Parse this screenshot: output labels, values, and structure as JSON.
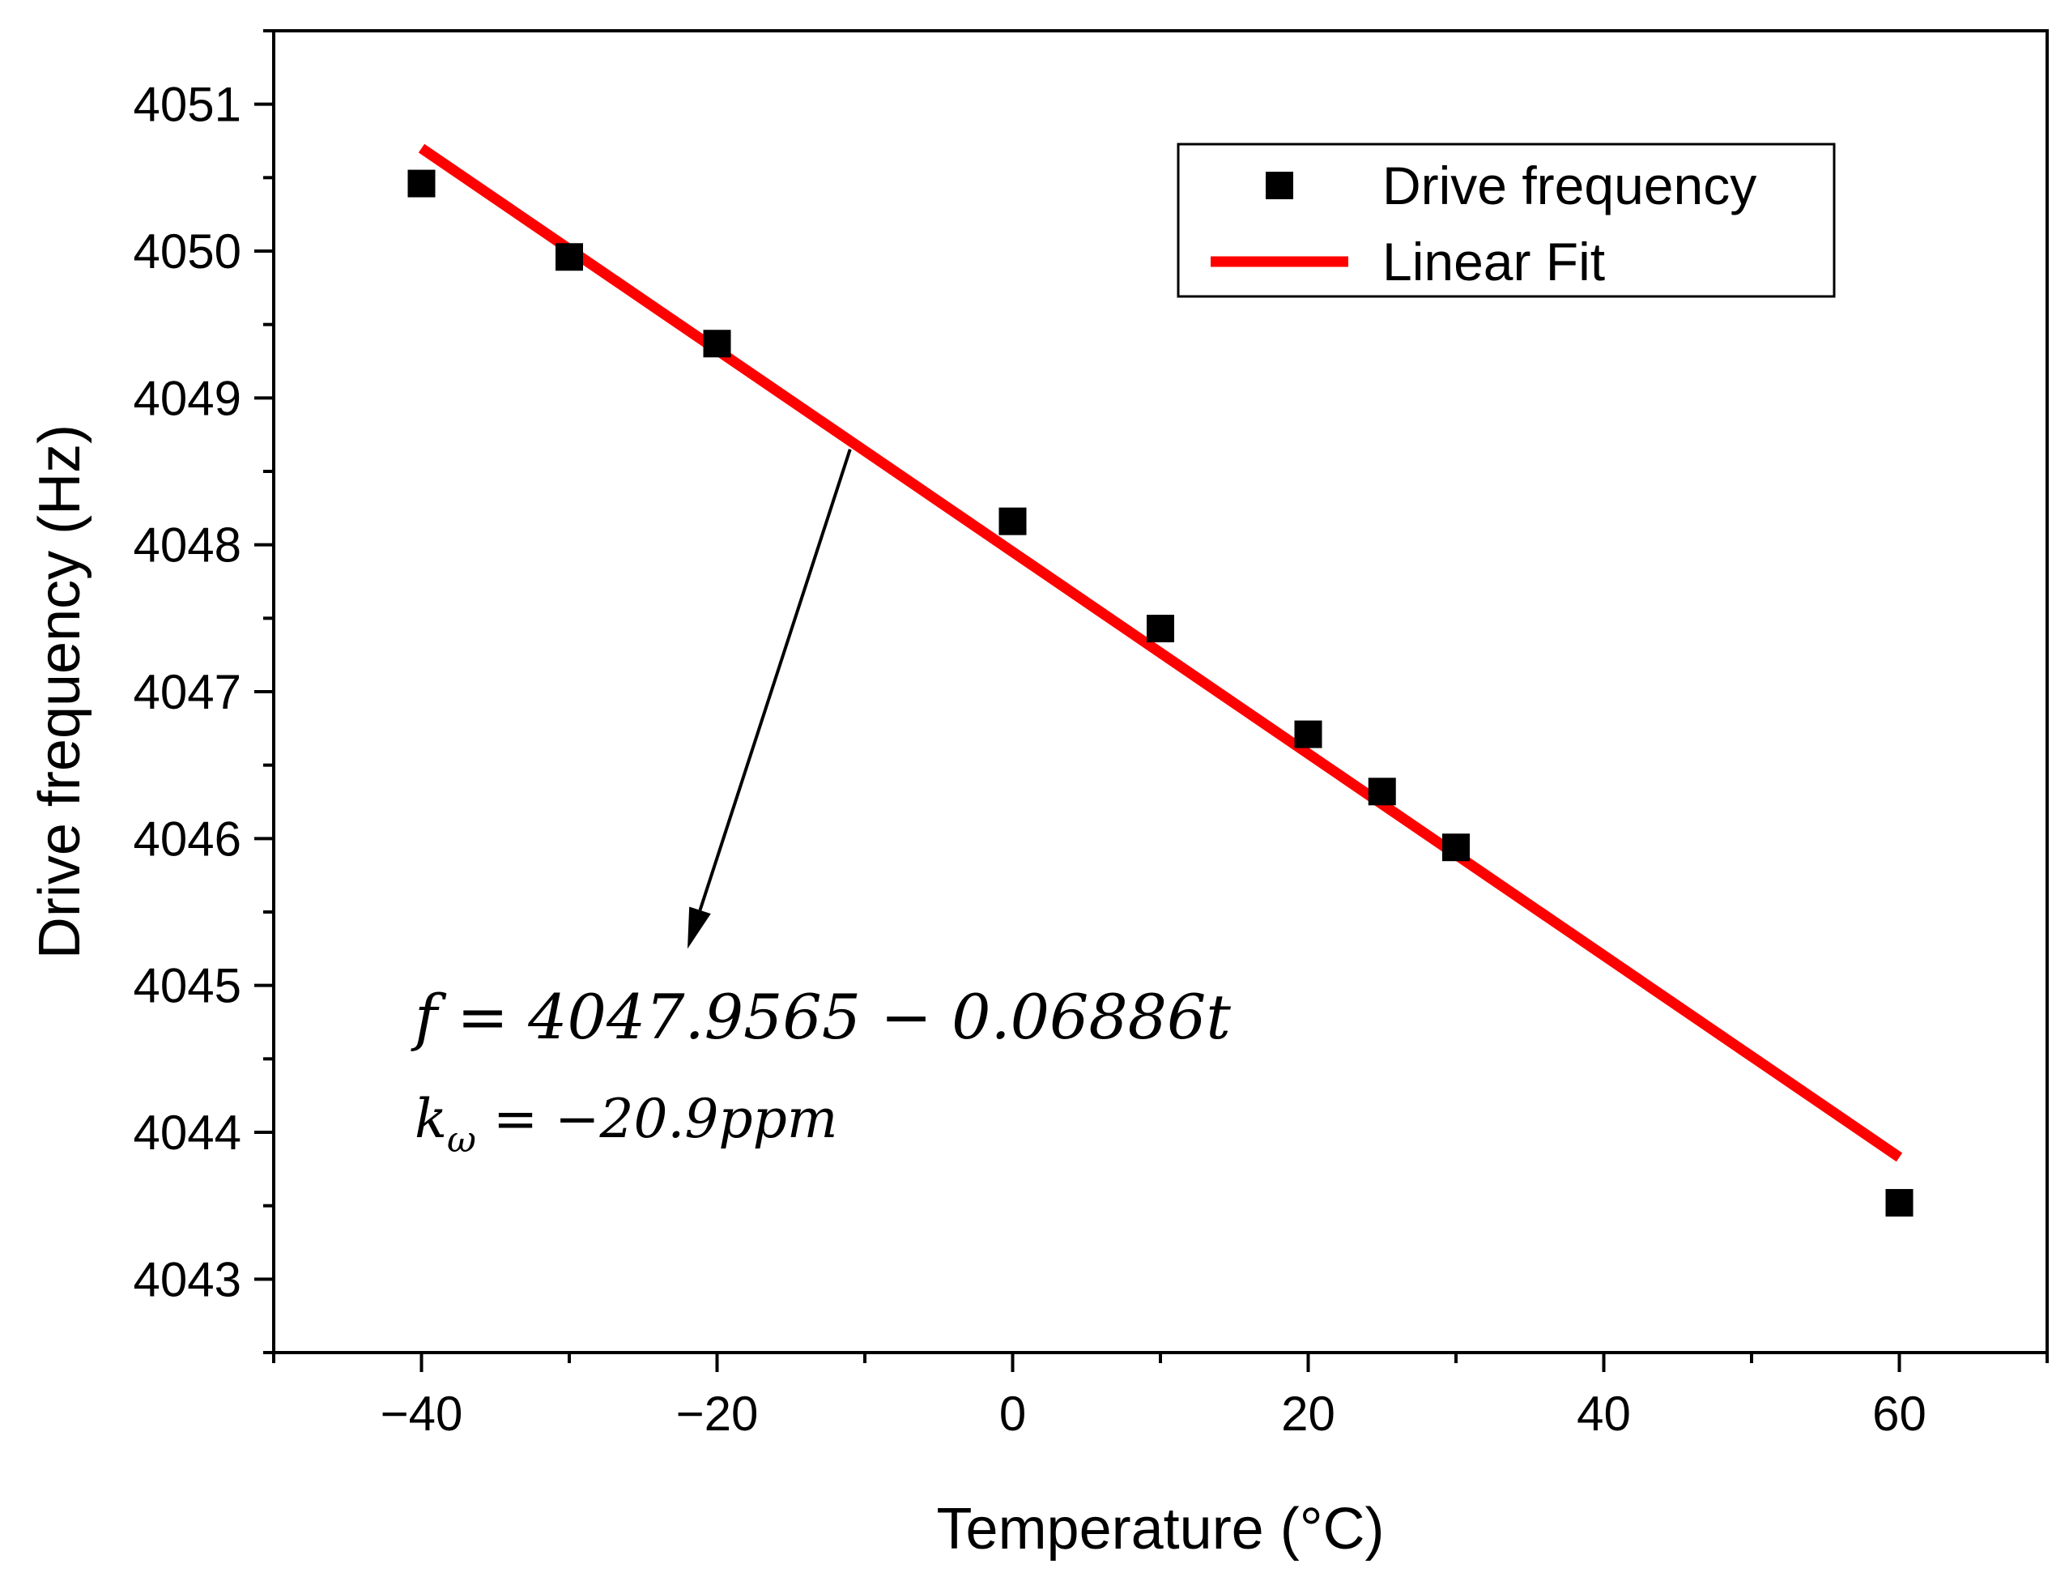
{
  "chart_data": {
    "type": "scatter",
    "title": "",
    "xlabel": "Temperature (°C)",
    "ylabel": "Drive frequency (Hz)",
    "xlim": [
      -50,
      70
    ],
    "ylim": [
      4042.5,
      4051.5
    ],
    "x_ticks": [
      -40,
      -20,
      0,
      20,
      40,
      60
    ],
    "x_tick_labels": [
      "−40",
      "−20",
      "0",
      "20",
      "40",
      "60"
    ],
    "y_ticks": [
      4043,
      4044,
      4045,
      4046,
      4047,
      4048,
      4049,
      4050,
      4051
    ],
    "y_tick_labels": [
      "4043",
      "4044",
      "4045",
      "4046",
      "4047",
      "4048",
      "4049",
      "4050",
      "4051"
    ],
    "grid": false,
    "legend_position": "top-right",
    "series": [
      {
        "name": "Drive frequency",
        "type": "scatter",
        "marker": "square",
        "color": "#000000",
        "x": [
          -40,
          -30,
          -20,
          0,
          10,
          20,
          25,
          30,
          60
        ],
        "y": [
          4050.46,
          4049.96,
          4049.37,
          4048.16,
          4047.43,
          4046.71,
          4046.32,
          4045.94,
          4043.52
        ]
      },
      {
        "name": "Linear Fit",
        "type": "line",
        "color": "#ff0000",
        "x": [
          -40,
          60
        ],
        "y": [
          4050.7,
          4043.83
        ]
      }
    ],
    "annotation": {
      "equation": "f = 4047.9565 − 0.06886t",
      "coefficient": "kω = −20.9ppm",
      "coefficient_main": "k",
      "coefficient_subscript": "ω",
      "coefficient_rest": " = −20.9ppm",
      "arrow_from": [
        -11,
        4048.65
      ],
      "arrow_to": [
        -22,
        4045.25
      ]
    }
  }
}
